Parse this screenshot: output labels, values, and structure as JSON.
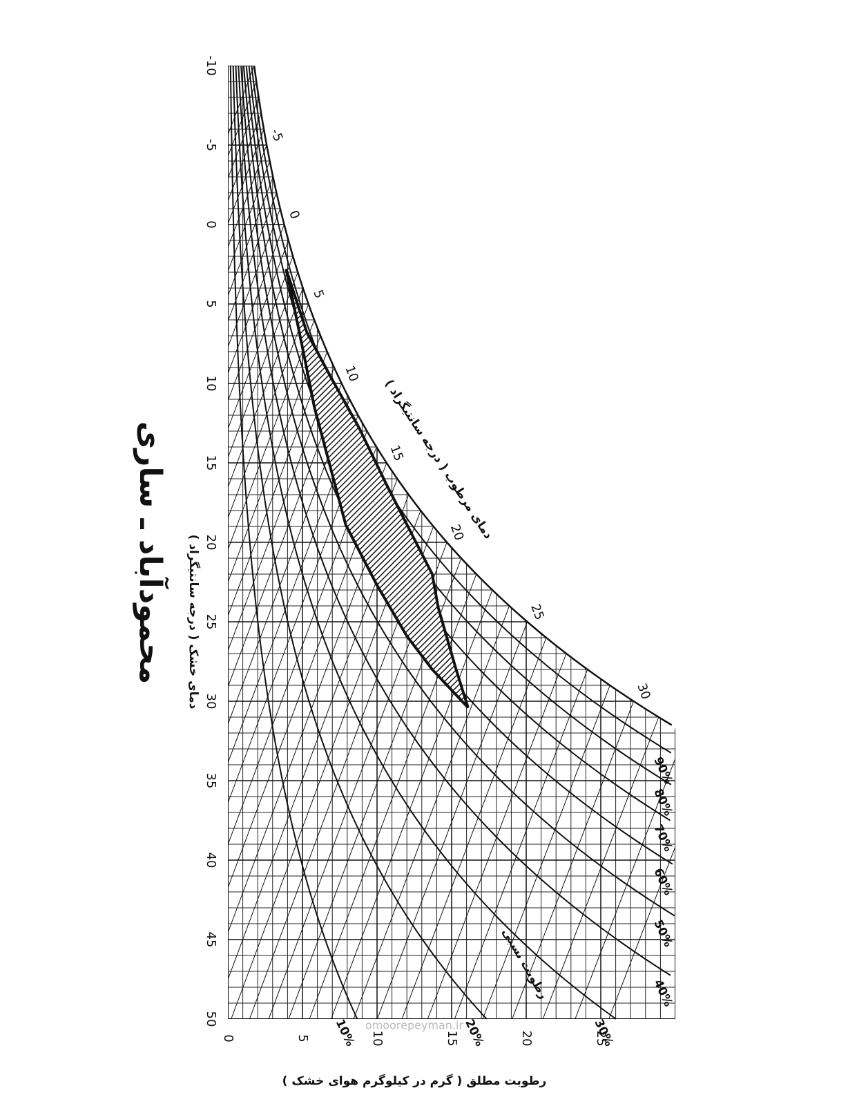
{
  "chart_data": {
    "type": "psychrometric",
    "title": "محمودآباد ـ ساری",
    "xlabel": "رطوبت مطلق ( گرم در کیلوگرم هوای خشک )",
    "ylabel": "دمای خشک ( درجه سانتیگراد )",
    "wet_bulb_label": "دمای مرطوب ( درجه سانتیگراد )",
    "relative_humidity_label": "رطوبت نسبی",
    "watermark": "omoorepeyman.ir",
    "xlim": [
      0,
      30
    ],
    "xticks": [
      0,
      5,
      10,
      15,
      20,
      25
    ],
    "ylim": [
      -10,
      50
    ],
    "yticks": [
      -10,
      -5,
      0,
      5,
      10,
      15,
      20,
      25,
      30,
      35,
      40,
      45,
      50
    ],
    "wet_bulb_ticks": [
      -5,
      0,
      5,
      10,
      15,
      20,
      25,
      30
    ],
    "relative_humidity": [
      {
        "value": 10,
        "label": "10%"
      },
      {
        "value": 20,
        "label": "20%"
      },
      {
        "value": 30,
        "label": "30%"
      },
      {
        "value": 40,
        "label": "40%"
      },
      {
        "value": 50,
        "label": "50%"
      },
      {
        "value": 60,
        "label": "60%"
      },
      {
        "value": 70,
        "label": "70%"
      },
      {
        "value": 80,
        "label": "80%"
      },
      {
        "value": 90,
        "label": "90%"
      }
    ],
    "comfort_zone": {
      "color": "#111111",
      "x": [
        3.9,
        5.3,
        6.9,
        8.8,
        10.6,
        12.5,
        13.7,
        14.1,
        15.3,
        16.1,
        13.7,
        12.0,
        10.0,
        7.9,
        5.8,
        5.1,
        4.4
      ],
      "y": [
        2.8,
        6.8,
        9.6,
        12.8,
        16.3,
        19.8,
        22,
        24.1,
        28,
        30.4,
        28,
        25.9,
        22.7,
        18.9,
        11.5,
        8.2,
        5
      ]
    },
    "grid": true
  }
}
